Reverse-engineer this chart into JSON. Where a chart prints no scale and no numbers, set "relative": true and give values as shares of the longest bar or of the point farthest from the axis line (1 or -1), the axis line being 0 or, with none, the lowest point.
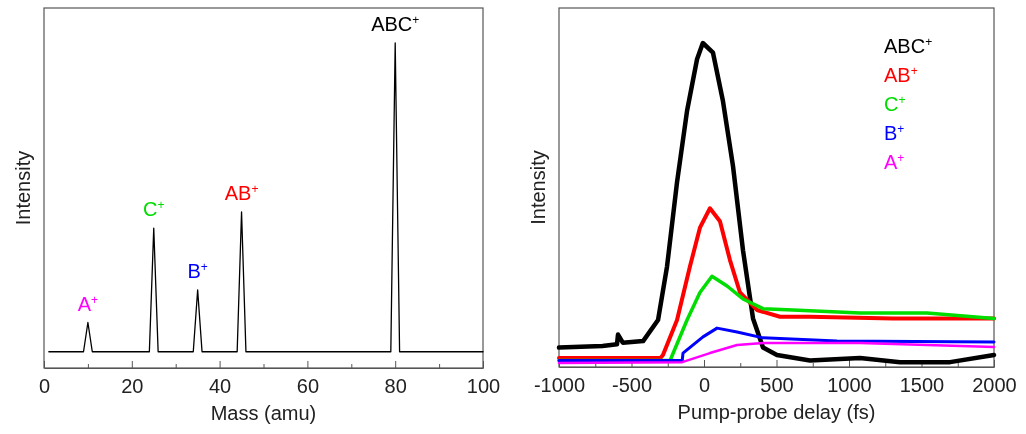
{
  "chart_data": [
    {
      "type": "line",
      "xlabel": "Mass (amu)",
      "ylabel": "Intensity",
      "relative": true,
      "xlim": [
        0,
        100
      ],
      "xticks": [
        0,
        {
          "value": 10,
          "label": null
        },
        20,
        {
          "value": 30,
          "label": null
        },
        40,
        {
          "value": 50,
          "label": null
        },
        60,
        {
          "value": 70,
          "label": null
        },
        80,
        {
          "value": 90,
          "label": null
        },
        100
      ],
      "series": [
        {
          "color": "#000000",
          "x": [
            1.1,
            9,
            10,
            11,
            24,
            25,
            26,
            34,
            35,
            36,
            44,
            45,
            46,
            79,
            80,
            81,
            100
          ],
          "values": [
            0.05,
            0.05,
            0.14,
            0.05,
            0.05,
            0.43,
            0.05,
            0.05,
            0.24,
            0.05,
            0.05,
            0.48,
            0.05,
            0.05,
            1,
            0.05,
            0.05
          ]
        }
      ],
      "annotations": [
        {
          "text": "A$^{+}$",
          "x": 10,
          "y": 0.14
        },
        {
          "text": "C$^{+}$",
          "x": 25,
          "y": 0.43
        },
        {
          "text": "B$^{+}$",
          "x": 35,
          "y": 0.24
        },
        {
          "text": "AB$^{+}$",
          "x": 45,
          "y": 0.48
        },
        {
          "text": "ABC$^{+}$",
          "x": 80,
          "y": 1
        }
      ],
      "colors": [
        "#ff00ff",
        "#00dd00",
        "#0000ff",
        "#ff0000",
        "#000000"
      ]
    },
    {
      "type": "line",
      "xlabel": "Pump-probe delay (fs)",
      "ylabel": "Intensity",
      "relative": true,
      "xlim": [
        -1000,
        2000
      ],
      "legend": "top right",
      "xticks": [
        -1000,
        {
          "value": -750,
          "label": null
        },
        -500,
        {
          "value": -250,
          "label": null
        },
        0,
        {
          "value": 250,
          "label": null
        },
        500,
        {
          "value": 750,
          "label": null
        },
        1000,
        {
          "value": 1250,
          "label": null
        },
        1500,
        {
          "value": 1750,
          "label": null
        },
        2000
      ],
      "series": [
        {
          "name": "ABC$^{+}$",
          "color": "#000000",
          "x": [
            -1000,
            -700,
            -600,
            -593,
            -560,
            -500,
            -420,
            -317,
            -255,
            -186,
            -117,
            -48,
            -8,
            62,
            131,
            200,
            269,
            338,
            407,
            503,
            731,
            1076,
            1352,
            1697,
            2000
          ],
          "values": [
            0.06,
            0.065,
            0.07,
            0.1,
            0.075,
            0.077,
            0.08,
            0.145,
            0.31,
            0.57,
            0.79,
            0.95,
            1,
            0.97,
            0.82,
            0.62,
            0.36,
            0.15,
            0.06,
            0.037,
            0.02,
            0.028,
            0.015,
            0.015,
            0.037
          ]
        },
        {
          "name": "AB$^{+}$",
          "color": "#ff0000",
          "x": [
            -1000,
            -300,
            -283,
            -186,
            -97,
            -28,
            41,
            110,
            179,
            248,
            365,
            524,
            731,
            1303,
            2000
          ],
          "values": [
            0.028,
            0.028,
            0.037,
            0.145,
            0.31,
            0.43,
            0.49,
            0.45,
            0.33,
            0.23,
            0.176,
            0.155,
            0.155,
            0.15,
            0.15
          ]
        },
        {
          "name": "C$^{+}$",
          "color": "#00dd00",
          "x": [
            -1000,
            -234,
            -117,
            -28,
            55,
            159,
            269,
            407,
            614,
            1076,
            1538,
            2000
          ],
          "values": [
            0.02,
            0.02,
            0.145,
            0.23,
            0.28,
            0.25,
            0.21,
            0.18,
            0.176,
            0.167,
            0.167,
            0.15
          ]
        },
        {
          "name": "B$^{+}$",
          "color": "#0000ff",
          "x": [
            -1000,
            -150,
            -145,
            -7,
            90,
            228,
            407,
            917,
            2000
          ],
          "values": [
            0.02,
            0.02,
            0.043,
            0.093,
            0.12,
            0.108,
            0.09,
            0.08,
            0.077
          ]
        },
        {
          "name": "A$^{+}$",
          "color": "#ff00ff",
          "x": [
            -1000,
            -150,
            41,
            228,
            407,
            1076,
            2000
          ],
          "values": [
            0.012,
            0.015,
            0.043,
            0.068,
            0.074,
            0.074,
            0.062
          ]
        }
      ]
    }
  ]
}
